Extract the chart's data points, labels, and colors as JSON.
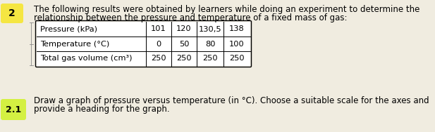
{
  "question_number": "2",
  "sub_number": "2.1",
  "main_line1": "The following results were obtained by learners while doing an experiment to determine the",
  "main_line2": "relationship between the pressure and temperature of a fixed mass of gas:",
  "sub_text_line1": "Draw a graph of pressure versus temperature (in °C). Choose a suitable scale for the axes and",
  "sub_text_line2": "provide a heading for the graph.",
  "table_headers": [
    "Pressure (kPa)",
    "Temperature (°C)",
    "Total gas volume (cm³)"
  ],
  "col1": [
    "101",
    "0",
    "250"
  ],
  "col2": [
    "120",
    "50",
    "250"
  ],
  "col3": [
    "130,5",
    "80",
    "250"
  ],
  "col4": [
    "138",
    "100",
    "250"
  ],
  "background_color": "#f0ece0",
  "badge_color_2": "#f5e642",
  "badge_color_21": "#d4f042",
  "font_size_main": 8.5,
  "font_size_table": 8.2,
  "font_size_sub": 8.5,
  "font_size_badge": 10
}
